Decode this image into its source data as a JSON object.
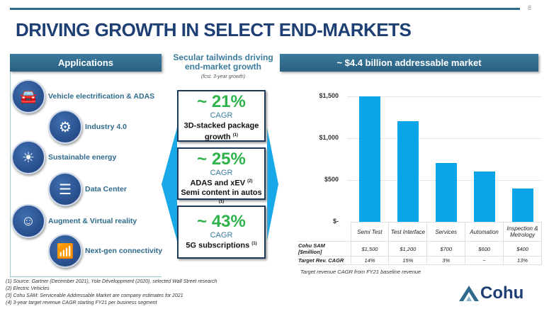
{
  "page_number": "8",
  "title": "DRIVING GROWTH IN SELECT END-MARKETS",
  "applications": {
    "header": "Applications",
    "items": [
      {
        "label": "Vehicle electrification & ADAS",
        "icon": "car-sensor-icon"
      },
      {
        "label": "Industry 4.0",
        "icon": "robot-arm-icon"
      },
      {
        "label": "Sustainable energy",
        "icon": "solar-wind-icon"
      },
      {
        "label": "Data Center",
        "icon": "server-icon"
      },
      {
        "label": "Augment & Virtual reality",
        "icon": "vr-headset-icon"
      },
      {
        "label": "Next-gen connectivity",
        "icon": "5g-tower-icon"
      }
    ]
  },
  "tailwinds": {
    "heading": "Secular tailwinds driving end-market growth",
    "subheading": "(fcst. 3-year growth)",
    "boxes": [
      {
        "pct": "~ 21%",
        "cagr": "CAGR",
        "lines": [
          "3D-stacked package",
          "growth"
        ],
        "notes": [
          "",
          "(1)"
        ]
      },
      {
        "pct": "~ 25%",
        "cagr": "CAGR",
        "lines": [
          "ADAS and xEV",
          "Semi content in autos"
        ],
        "notes": [
          "(2)",
          "(1)"
        ]
      },
      {
        "pct": "~ 43%",
        "cagr": "CAGR",
        "lines": [
          "5G subscriptions"
        ],
        "notes": [
          "(1)"
        ]
      }
    ]
  },
  "market": {
    "header": "~ $4.4 billion addressable market",
    "note": "Target revenue CAGR from FY21 baseline revenue"
  },
  "chart_data": {
    "type": "bar",
    "categories": [
      "Semi Test",
      "Test Interface",
      "Services",
      "Automation",
      "Inspection & Metrology"
    ],
    "values": [
      1500,
      1200,
      700,
      600,
      400
    ],
    "ylim": [
      0,
      1500
    ],
    "yticks": [
      "$-",
      "$500",
      "$1,000",
      "$1,500"
    ],
    "ytick_values": [
      0,
      500,
      1000,
      1500
    ],
    "table": {
      "rows": [
        {
          "label": "Cohu SAM [$million]",
          "cells": [
            "$1,500",
            "$1,200",
            "$700",
            "$600",
            "$400"
          ]
        },
        {
          "label": "Target Rev. CAGR",
          "cells": [
            "14%",
            "15%",
            "3%",
            "~",
            "13%"
          ]
        }
      ]
    }
  },
  "footnotes": [
    "(1)  Source: Gartner (December 2021), Yole Développment (2020), selected Wall Street research",
    "(2)  Electric Vehicles",
    "(3)  Cohu SAM: Serviceable Addressable Market are company estimates for 2021",
    "(4)  3-year target revenue CAGR starting FY21 per business segment"
  ],
  "logo": "Cohu",
  "colors": {
    "accent": "#2f6a8c",
    "bar": "#0aa5e6",
    "green": "#2db34a",
    "title": "#1d3f73"
  }
}
